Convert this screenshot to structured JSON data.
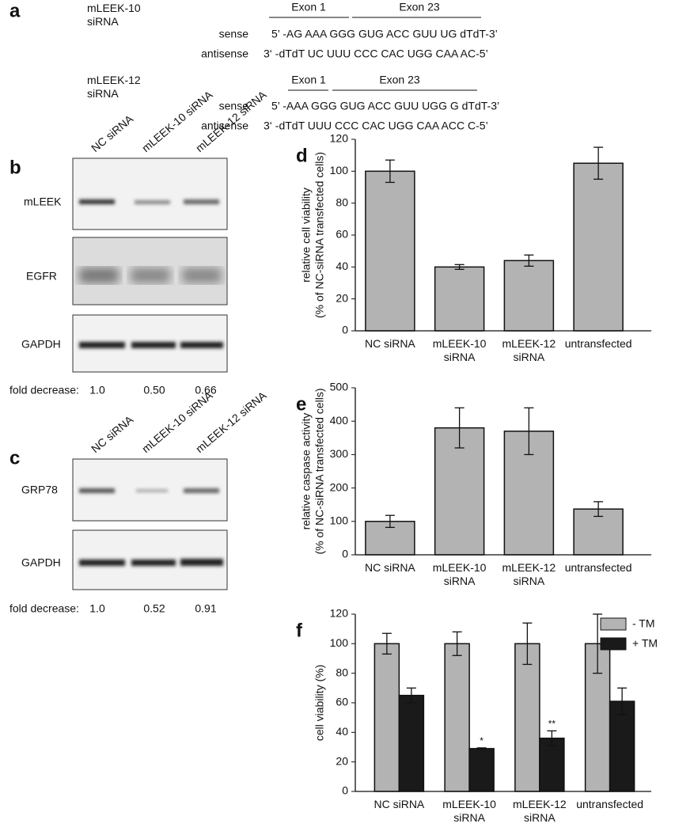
{
  "panel_a": {
    "label": "a",
    "blocks": [
      {
        "name": "mLEEK-10\nsiRNA",
        "exons": [
          "Exon 1",
          "Exon 23"
        ],
        "sense_label": "sense",
        "sense": "5’ -AG AAA GGG GUG ACC GUU UG dTdT-3’",
        "antisense_label": "antisense",
        "antisense": "3‘ -dTdT UC UUU CCC CAC UGG CAA AC-5’"
      },
      {
        "name": "mLEEK-12\nsiRNA",
        "exons": [
          "Exon 1",
          "Exon 23"
        ],
        "sense_label": "sense",
        "sense": "5’ -AAA GGG GUG ACC GUU UGG G dTdT-3’",
        "antisense_label": "antisense",
        "antisense": "3‘ -dTdT UUU CCC  CAC UGG CAA ACC  C-5’"
      }
    ]
  },
  "panel_b": {
    "label": "b",
    "lanes": [
      "NC siRNA",
      "mLEEK-10 siRNA",
      "mLEEK-12 siRNA"
    ],
    "rows": [
      "mLEEK",
      "EGFR",
      "GAPDH"
    ],
    "fold_label": "fold decrease:",
    "fold": [
      "1.0",
      "0.50",
      "0.66"
    ]
  },
  "panel_c": {
    "label": "c",
    "lanes": [
      "NC siRNA",
      "mLEEK-10 siRNA",
      "mLEEK-12 siRNA"
    ],
    "rows": [
      "GRP78",
      "GAPDH"
    ],
    "fold_label": "fold decrease:",
    "fold": [
      "1.0",
      "0.52",
      "0.91"
    ]
  },
  "chart_data": [
    {
      "type": "bar",
      "label": "d",
      "y_label": [
        "relative cell viability",
        "(% of NC-siRNA transfected cells)"
      ],
      "categories": [
        "NC siRNA",
        "mLEEK-10\nsiRNA",
        "mLEEK-12\nsiRNA",
        "untransfected"
      ],
      "values": [
        100,
        40,
        44,
        105
      ],
      "errors": [
        7,
        1.5,
        3.5,
        10
      ],
      "color": "#b3b3b3",
      "ylim": [
        0,
        120
      ],
      "yticks": [
        0,
        20,
        40,
        60,
        80,
        100,
        120
      ]
    },
    {
      "type": "bar",
      "label": "e",
      "y_label": [
        "relative caspase activity",
        "(% of NC-siRNA transfected cells)"
      ],
      "categories": [
        "NC siRNA",
        "mLEEK-10\nsiRNA",
        "mLEEK-12\nsiRNA",
        "untransfected"
      ],
      "values": [
        100,
        380,
        370,
        137
      ],
      "errors": [
        18,
        60,
        70,
        22
      ],
      "color": "#b3b3b3",
      "ylim": [
        0,
        500
      ],
      "yticks": [
        0,
        100,
        200,
        300,
        400,
        500
      ]
    },
    {
      "type": "bar",
      "label": "f",
      "y_label": [
        "cell viability (%)"
      ],
      "categories": [
        "NC siRNA",
        "mLEEK-10\nsiRNA",
        "mLEEK-12\nsiRNA",
        "untransfected"
      ],
      "series": [
        {
          "name": "- TM",
          "color": "#b3b3b3",
          "values": [
            100,
            100,
            100,
            100
          ],
          "errors": [
            7,
            8,
            14,
            20
          ]
        },
        {
          "name": "+ TM",
          "color": "#1a1a1a",
          "values": [
            65,
            29,
            36,
            61
          ],
          "errors": [
            5,
            0.5,
            5,
            9
          ],
          "annotations": [
            null,
            "*",
            "**",
            null
          ]
        }
      ],
      "legend": "upper right",
      "ylim": [
        0,
        120
      ],
      "yticks": [
        0,
        20,
        40,
        60,
        80,
        100,
        120
      ]
    }
  ]
}
